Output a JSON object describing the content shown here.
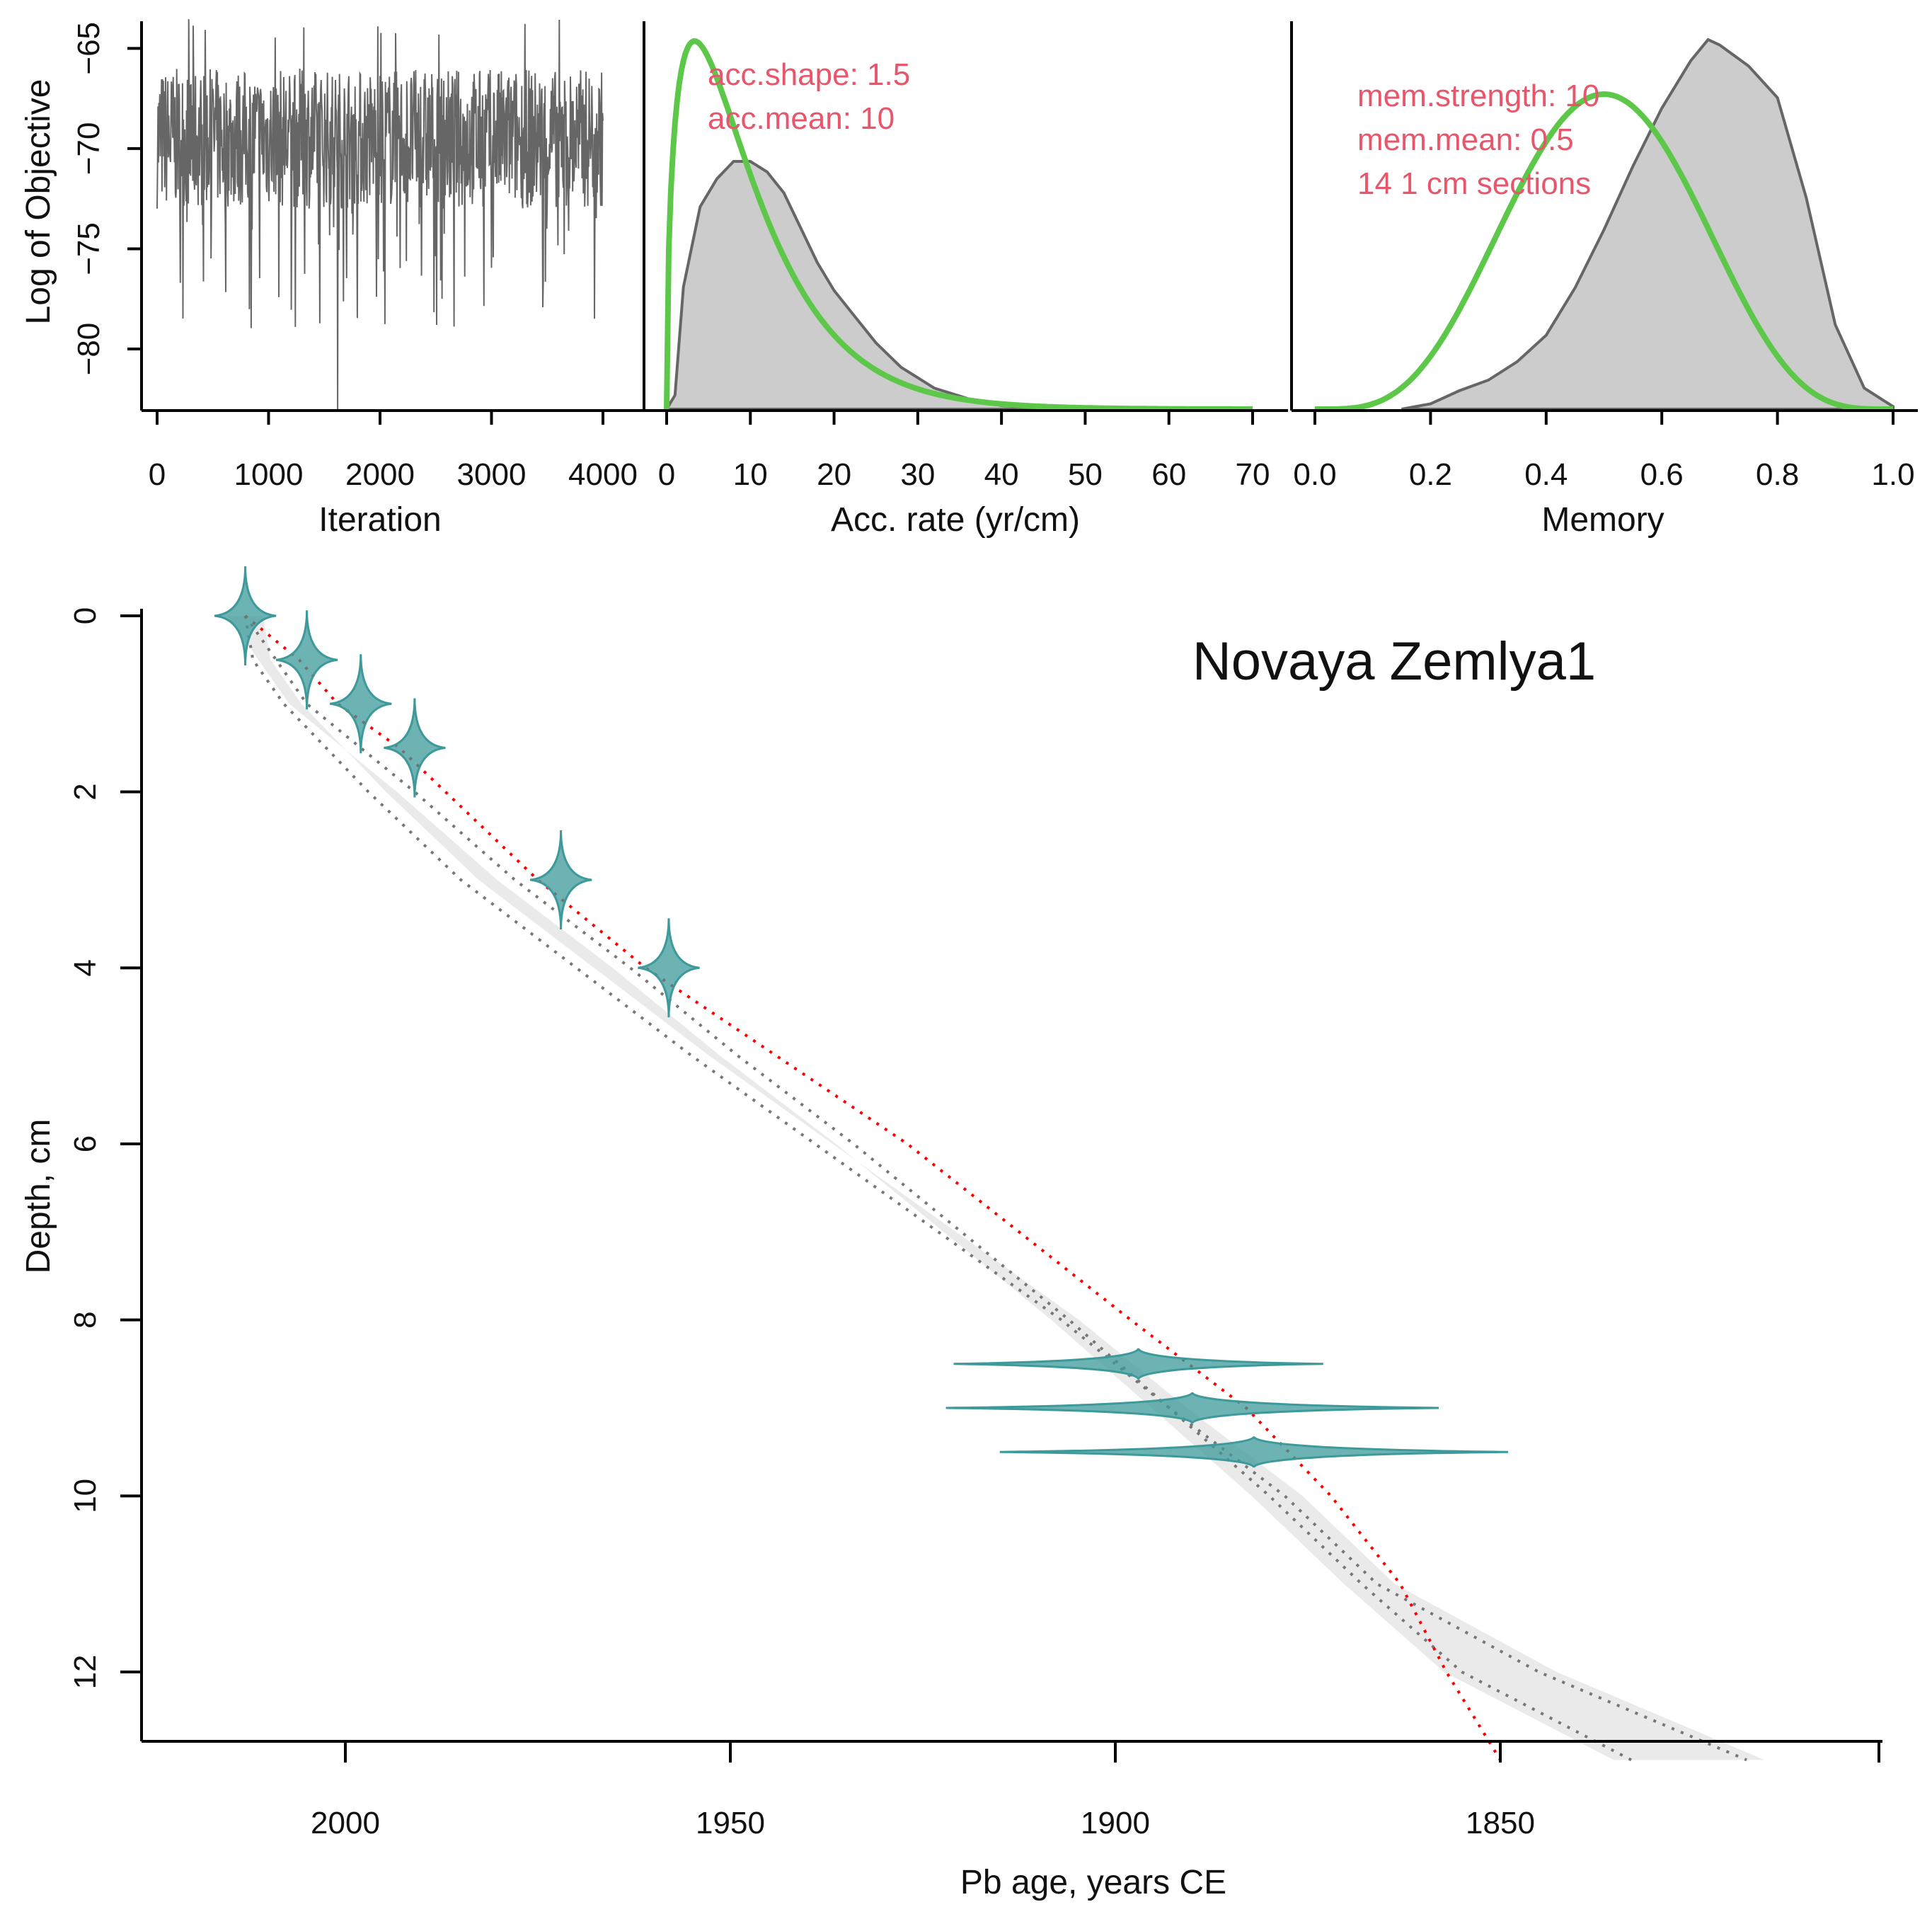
{
  "colors": {
    "prior": "#5dc74a",
    "posterior_fill": "#cccccc",
    "posterior_line": "#666666",
    "trace": "#666666",
    "annotation": "#e8566c",
    "dates": "#3e9a9a",
    "mean_line": "#ff0000",
    "bounds": "#777777"
  },
  "chart_data": [
    {
      "id": "iteration-plot",
      "type": "line",
      "xlabel": "Iteration",
      "ylabel": "Log of Objective",
      "xlim": [
        0,
        4000
      ],
      "ylim": [
        -83,
        -64
      ],
      "xticks": [
        0,
        1000,
        2000,
        3000,
        4000
      ],
      "yticks": [
        -65,
        -70,
        -75,
        -80
      ],
      "xtick_labels": [
        "0",
        "1000",
        "2000",
        "3000",
        "4000"
      ],
      "ytick_labels": [
        "−65",
        "−70",
        "−75",
        "−80"
      ],
      "series": [
        {
          "name": "Log of Objective trace",
          "n_iterations": 4000,
          "typical_low": -73,
          "typical_high": -66,
          "min": -83,
          "max": -64
        }
      ]
    },
    {
      "id": "acc-rate-plot",
      "type": "area",
      "xlabel": "Acc. rate (yr/cm)",
      "xlim": [
        0,
        70
      ],
      "xticks": [
        0,
        10,
        20,
        30,
        40,
        50,
        60,
        70
      ],
      "xtick_labels": [
        "0",
        "10",
        "20",
        "30",
        "40",
        "50",
        "60",
        "70"
      ],
      "annotations": [
        "acc.shape:  1.5",
        "acc.mean:  10"
      ],
      "series": [
        {
          "name": "prior (gamma)",
          "shape": 1.5,
          "mean": 10
        },
        {
          "name": "posterior density",
          "x": [
            0,
            1,
            2,
            4,
            6,
            8,
            10,
            12,
            14,
            16,
            18,
            20,
            22,
            25,
            28,
            32,
            36,
            40,
            45,
            50,
            55,
            60,
            65,
            70
          ],
          "y": [
            0,
            0.004,
            0.035,
            0.058,
            0.066,
            0.071,
            0.071,
            0.068,
            0.062,
            0.052,
            0.042,
            0.034,
            0.028,
            0.019,
            0.012,
            0.006,
            0.003,
            0.001,
            0.0004,
            0.0002,
            0.0001,
            0,
            0,
            0
          ]
        }
      ]
    },
    {
      "id": "memory-plot",
      "type": "area",
      "xlabel": "Memory",
      "xlim": [
        0,
        1
      ],
      "xticks": [
        0,
        0.2,
        0.4,
        0.6,
        0.8,
        1.0
      ],
      "xtick_labels": [
        "0.0",
        "0.2",
        "0.4",
        "0.6",
        "0.8",
        "1.0"
      ],
      "annotations": [
        "mem.strength: 10",
        "mem.mean: 0.5",
        "14 1 cm sections"
      ],
      "series": [
        {
          "name": "prior (beta)",
          "strength": 10,
          "mean": 0.5
        },
        {
          "name": "posterior density",
          "x": [
            0.15,
            0.2,
            0.25,
            0.3,
            0.35,
            0.4,
            0.45,
            0.5,
            0.55,
            0.6,
            0.65,
            0.68,
            0.7,
            0.75,
            0.8,
            0.85,
            0.9,
            0.95,
            1.0
          ],
          "y": [
            0,
            0.1,
            0.35,
            0.55,
            0.9,
            1.4,
            2.3,
            3.4,
            4.6,
            5.7,
            6.6,
            7.0,
            6.9,
            6.5,
            5.9,
            4.0,
            1.6,
            0.4,
            0.05
          ]
        }
      ]
    },
    {
      "id": "age-depth-plot",
      "type": "line",
      "title": "Novaya Zemlya1",
      "xlabel": "Pb age, years CE",
      "ylabel": "Depth, cm",
      "xlim": [
        2026,
        1799
      ],
      "ylim": [
        13,
        0
      ],
      "xticks": [
        2000,
        1950,
        1900,
        1850
      ],
      "yticks": [
        0,
        2,
        4,
        6,
        8,
        10,
        12
      ],
      "xtick_labels": [
        "2000",
        "1950",
        "1900",
        "1850"
      ],
      "ytick_labels": [
        "0",
        "2",
        "4",
        "6",
        "8",
        "10",
        "12"
      ],
      "series": [
        {
          "name": "mean age-depth model",
          "depth": [
            0,
            0.5,
            1,
            1.5,
            3,
            4,
            6,
            8,
            9,
            10,
            11,
            12,
            13
          ],
          "age": [
            2013,
            2006,
            2001,
            1993,
            1975,
            1961,
            1927,
            1898,
            1883,
            1872,
            1863,
            1857,
            1850
          ]
        },
        {
          "name": "95% range young boundary",
          "depth": [
            0,
            0.5,
            1,
            2,
            3,
            4,
            5,
            6,
            7,
            8,
            9,
            10,
            11,
            12,
            13
          ],
          "age": [
            2013,
            2012,
            2008,
            1997,
            1985,
            1970,
            1955,
            1939,
            1923,
            1907,
            1893,
            1878,
            1866,
            1845,
            1818
          ]
        },
        {
          "name": "95% range old boundary",
          "depth": [
            0,
            0.5,
            1,
            2,
            3,
            4,
            5,
            6,
            7,
            8,
            9,
            10,
            11,
            12,
            13
          ],
          "age": [
            2013,
            2009,
            2005,
            1991,
            1978,
            1963,
            1949,
            1934,
            1920,
            1906,
            1893,
            1880,
            1868,
            1855,
            1833
          ]
        }
      ],
      "dated_samples": [
        {
          "depth": 0,
          "age": 2013,
          "spread": 4
        },
        {
          "depth": 0.5,
          "age": 2005,
          "spread": 4
        },
        {
          "depth": 1,
          "age": 1998,
          "spread": 4
        },
        {
          "depth": 1.5,
          "age": 1991,
          "spread": 4
        },
        {
          "depth": 3,
          "age": 1972,
          "spread": 4
        },
        {
          "depth": 4,
          "age": 1958,
          "spread": 4
        },
        {
          "depth": 8.5,
          "age": 1897,
          "spread": 24
        },
        {
          "depth": 9,
          "age": 1890,
          "spread": 32
        },
        {
          "depth": 9.5,
          "age": 1882,
          "spread": 33
        }
      ]
    }
  ]
}
